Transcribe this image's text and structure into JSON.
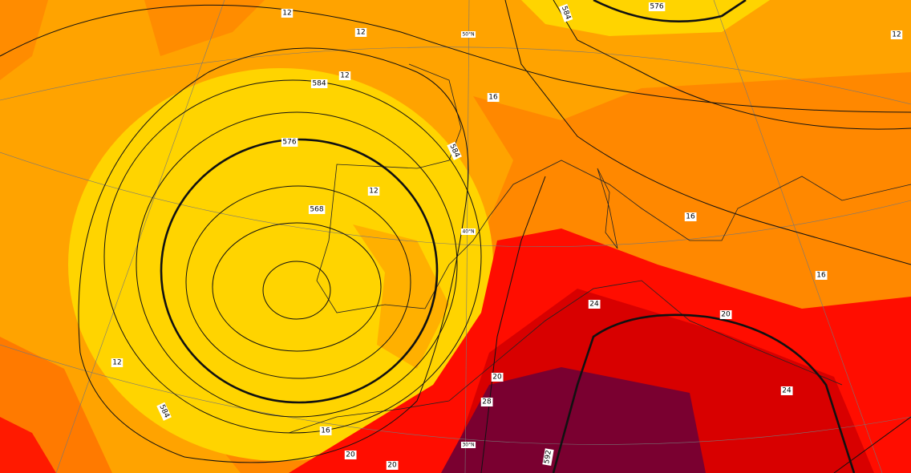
{
  "height_labels": [
    584,
    576,
    568,
    584,
    584,
    576,
    584,
    592
  ],
  "temperature_labels": [
    12,
    12,
    12,
    16,
    12,
    16,
    16,
    20,
    24,
    24,
    20,
    28,
    12,
    16,
    20,
    20,
    12
  ],
  "latitude_labels": [
    "50°N",
    "40°N",
    "30°N"
  ]
}
